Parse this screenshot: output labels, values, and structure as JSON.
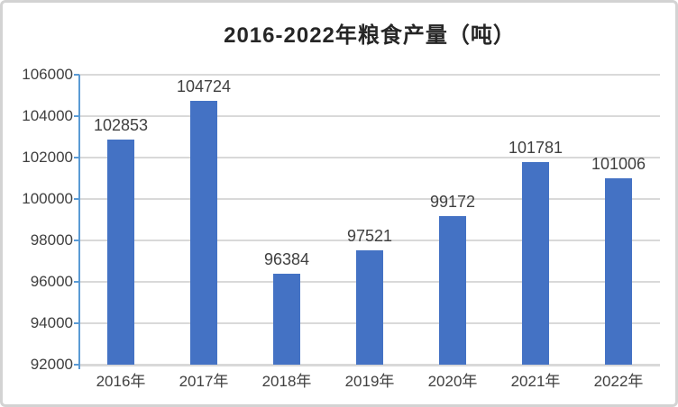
{
  "chart_data": {
    "type": "bar",
    "title": "2016-2022年粮食产量（吨）",
    "categories": [
      "2016年",
      "2017年",
      "2018年",
      "2019年",
      "2020年",
      "2021年",
      "2022年"
    ],
    "values": [
      102853,
      104724,
      96384,
      97521,
      99172,
      101781,
      101006
    ],
    "data_labels": [
      "102853",
      "104724",
      "96384",
      "97521",
      "99172",
      "101781",
      "101006"
    ],
    "yticks": [
      92000,
      94000,
      96000,
      98000,
      100000,
      102000,
      104000,
      106000
    ],
    "ytick_labels": [
      "92000",
      "94000",
      "96000",
      "98000",
      "100000",
      "102000",
      "104000",
      "106000"
    ],
    "ylim": [
      92000,
      106000
    ],
    "xlabel": "",
    "ylabel": "",
    "grid": true,
    "legend": "none",
    "colors": {
      "bar": "#4472C4",
      "axis_line": "#5B9BD5",
      "gridline": "#D9D9D9",
      "baseline": "#D9D9D9",
      "label_text": "#404040",
      "title_text": "#262626",
      "frame_border": "#D3D3D3",
      "background": "#FFFFFF"
    }
  }
}
